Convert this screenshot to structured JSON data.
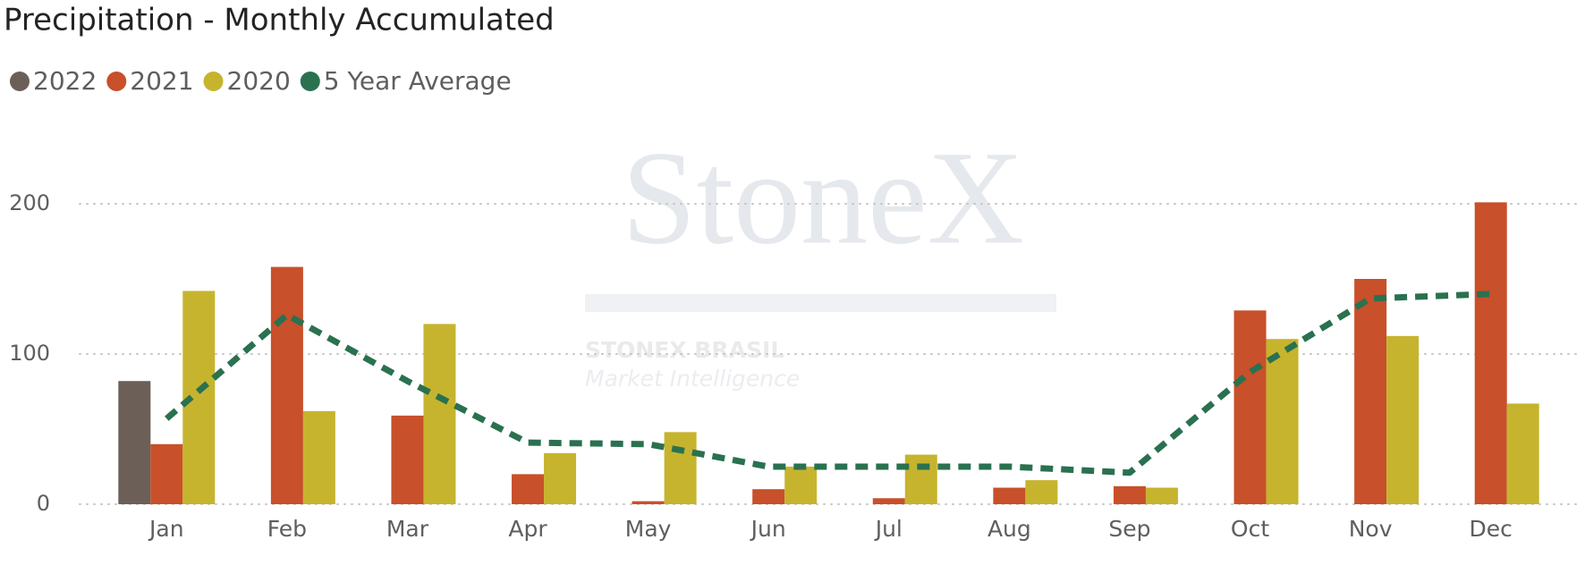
{
  "chart_data": {
    "type": "bar",
    "title": "Precipitation - Monthly Accumulated",
    "watermark": {
      "brand": "StoneX",
      "line1": "STONEX BRASIL",
      "line2": "Market Intelligence"
    },
    "categories": [
      "Jan",
      "Feb",
      "Mar",
      "Apr",
      "May",
      "Jun",
      "Jul",
      "Aug",
      "Sep",
      "Oct",
      "Nov",
      "Dec"
    ],
    "series": [
      {
        "name": "2022",
        "color": "#6b5f57",
        "values": [
          82,
          null,
          null,
          null,
          null,
          null,
          null,
          null,
          null,
          null,
          null,
          null
        ]
      },
      {
        "name": "2021",
        "color": "#c8502a",
        "values": [
          40,
          158,
          59,
          20,
          2,
          10,
          4,
          11,
          12,
          129,
          150,
          201
        ]
      },
      {
        "name": "2020",
        "color": "#c6b42e",
        "values": [
          142,
          62,
          120,
          34,
          48,
          25,
          33,
          16,
          11,
          110,
          112,
          67
        ]
      },
      {
        "name": "5 Year Average",
        "color": "#2a7150",
        "type": "line",
        "dashed": true,
        "values": [
          57,
          126,
          82,
          41,
          40,
          25,
          25,
          25,
          21,
          88,
          137,
          140
        ]
      }
    ],
    "ylim": [
      0,
      250
    ],
    "yticks": [
      0,
      100,
      200
    ],
    "grid": true,
    "legend": "top-left"
  }
}
